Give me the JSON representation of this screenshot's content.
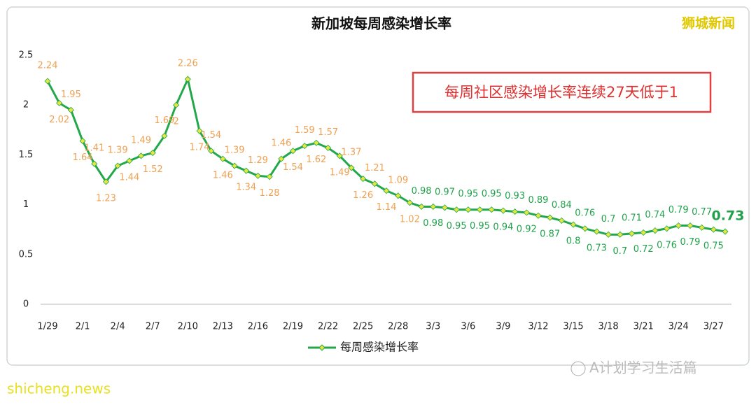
{
  "chart_data": {
    "type": "line",
    "title": "新加坡每周感染增长率",
    "annotation": "每周社区感染增长率连续27天低于1",
    "watermarks": [
      "狮城新闻",
      "shicheng.news",
      "A计划学习生活篇"
    ],
    "categories": [
      "1/29",
      null,
      null,
      "2/1",
      null,
      null,
      "2/4",
      null,
      null,
      "2/7",
      null,
      null,
      "2/10",
      null,
      null,
      "2/13",
      null,
      null,
      "2/16",
      null,
      null,
      "2/19",
      null,
      null,
      "2/22",
      null,
      null,
      "2/25",
      null,
      null,
      "2/28",
      null,
      null,
      "3/3",
      null,
      null,
      "3/6",
      null,
      null,
      "3/9",
      null,
      null,
      "3/12",
      null,
      null,
      "3/15",
      null,
      null,
      "3/18",
      null,
      null,
      "3/21",
      null,
      null,
      "3/24",
      null,
      null,
      "3/27",
      null
    ],
    "series": [
      {
        "name": "每周感染增长率",
        "color": "#22a84a",
        "marker_color": "#e6e640",
        "values": [
          2.24,
          2.02,
          1.95,
          1.64,
          1.41,
          1.23,
          1.39,
          1.44,
          1.49,
          1.52,
          1.69,
          2,
          2.26,
          1.74,
          1.54,
          1.46,
          1.39,
          1.34,
          1.29,
          1.28,
          1.46,
          1.54,
          1.59,
          1.62,
          1.57,
          1.49,
          1.37,
          1.26,
          1.21,
          1.14,
          1.09,
          1.02,
          0.98,
          0.98,
          0.97,
          0.95,
          0.95,
          0.95,
          0.95,
          0.94,
          0.93,
          0.92,
          0.89,
          0.87,
          0.84,
          0.8,
          0.76,
          0.73,
          0.7,
          0.7,
          0.71,
          0.72,
          0.74,
          0.76,
          0.79,
          0.79,
          0.77,
          0.75,
          0.73
        ],
        "label_colors": [
          "#f0a050",
          "#f0a050",
          "#f0a050",
          "#f0a050",
          "#f0a050",
          "#f0a050",
          "#f0a050",
          "#f0a050",
          "#f0a050",
          "#f0a050",
          "#f0a050",
          "#f0a050",
          "#f0a050",
          "#f0a050",
          "#f0a050",
          "#f0a050",
          "#f0a050",
          "#f0a050",
          "#f0a050",
          "#f0a050",
          "#f0a050",
          "#f0a050",
          "#f0a050",
          "#f0a050",
          "#f0a050",
          "#f0a050",
          "#f0a050",
          "#f0a050",
          "#f0a050",
          "#f0a050",
          "#f0a050",
          "#f0a050",
          "#1fa24a",
          "#1fa24a",
          "#1fa24a",
          "#1fa24a",
          "#1fa24a",
          "#1fa24a",
          "#1fa24a",
          "#1fa24a",
          "#1fa24a",
          "#1fa24a",
          "#1fa24a",
          "#1fa24a",
          "#1fa24a",
          "#1fa24a",
          "#1fa24a",
          "#1fa24a",
          "#1fa24a",
          "#1fa24a",
          "#1fa24a",
          "#1fa24a",
          "#1fa24a",
          "#1fa24a",
          "#1fa24a",
          "#1fa24a",
          "#1fa24a",
          "#1fa24a",
          "#1fa24a"
        ]
      }
    ],
    "ylim": [
      0,
      2.5
    ],
    "yticks": [
      0,
      0.5,
      1,
      1.5,
      2,
      2.5
    ],
    "legend": "bottom"
  }
}
